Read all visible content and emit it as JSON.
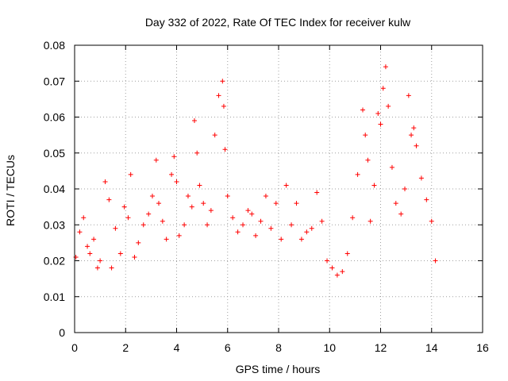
{
  "chart_data": {
    "type": "scatter",
    "title": "Day 332 of 2022, Rate Of TEC Index for receiver kulw",
    "xlabel": "GPS time / hours",
    "ylabel": "ROTI / TECUs",
    "xlim": [
      0,
      16
    ],
    "ylim": [
      0,
      0.08
    ],
    "x_ticks": [
      "0",
      "2",
      "4",
      "6",
      "8",
      "10",
      "12",
      "14",
      "16"
    ],
    "y_ticks": [
      "0",
      "0.01",
      "0.02",
      "0.03",
      "0.04",
      "0.05",
      "0.06",
      "0.07",
      "0.08"
    ],
    "grid": true,
    "marker": "+",
    "color": "#ff0000",
    "series": [
      {
        "x": [
          0.05,
          0.2,
          0.35,
          0.5,
          0.6,
          0.75,
          0.9,
          1.0,
          1.2,
          1.35,
          1.45,
          1.6,
          1.8,
          1.95,
          2.1,
          2.2,
          2.35,
          2.5,
          2.7,
          2.9,
          3.05,
          3.2,
          3.3,
          3.45,
          3.6,
          3.8,
          3.9,
          4.0,
          4.1,
          4.3,
          4.45,
          4.6,
          4.7,
          4.8,
          4.9,
          5.05,
          5.2,
          5.35,
          5.5,
          5.65,
          5.8,
          5.85,
          5.9,
          6.0,
          6.2,
          6.4,
          6.6,
          6.8,
          6.95,
          7.1,
          7.3,
          7.5,
          7.7,
          7.9,
          8.1,
          8.3,
          8.5,
          8.7,
          8.9,
          9.1,
          9.3,
          9.5,
          9.7,
          9.9,
          10.1,
          10.3,
          10.5,
          10.7,
          10.9,
          11.1,
          11.3,
          11.4,
          11.5,
          11.6,
          11.75,
          11.9,
          12.0,
          12.1,
          12.2,
          12.3,
          12.45,
          12.6,
          12.8,
          12.95,
          13.1,
          13.2,
          13.3,
          13.4,
          13.6,
          13.8,
          14.0,
          14.15
        ],
        "y": [
          0.021,
          0.028,
          0.032,
          0.024,
          0.022,
          0.026,
          0.018,
          0.02,
          0.042,
          0.037,
          0.018,
          0.029,
          0.022,
          0.035,
          0.032,
          0.044,
          0.021,
          0.025,
          0.03,
          0.033,
          0.038,
          0.048,
          0.036,
          0.031,
          0.026,
          0.044,
          0.049,
          0.042,
          0.027,
          0.03,
          0.038,
          0.035,
          0.059,
          0.05,
          0.041,
          0.036,
          0.03,
          0.034,
          0.055,
          0.066,
          0.07,
          0.063,
          0.051,
          0.038,
          0.032,
          0.028,
          0.03,
          0.034,
          0.033,
          0.027,
          0.031,
          0.038,
          0.029,
          0.036,
          0.026,
          0.041,
          0.03,
          0.036,
          0.026,
          0.028,
          0.029,
          0.039,
          0.031,
          0.02,
          0.018,
          0.016,
          0.017,
          0.022,
          0.032,
          0.044,
          0.062,
          0.055,
          0.048,
          0.031,
          0.041,
          0.061,
          0.058,
          0.068,
          0.074,
          0.063,
          0.046,
          0.036,
          0.033,
          0.04,
          0.066,
          0.055,
          0.057,
          0.052,
          0.043,
          0.037,
          0.031,
          0.02
        ]
      }
    ]
  }
}
